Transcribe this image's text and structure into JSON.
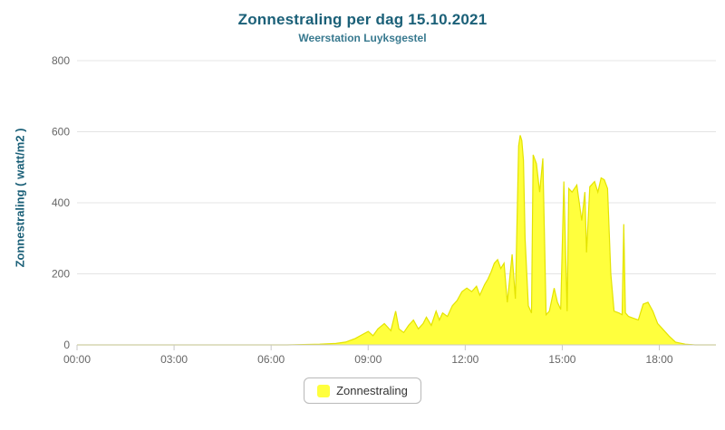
{
  "header": {
    "title": "Zonnestraling per dag 15.10.2021",
    "subtitle": "Weerstation Luyksgestel"
  },
  "legend": {
    "label": "Zonnestraling"
  },
  "colors": {
    "title_text": "#1b6078",
    "subtitle_text": "#38798f",
    "area_fill": "#ffff3d",
    "area_stroke": "#e3e300",
    "grid_line": "#e4e4e4",
    "axis_line": "#c8c8c8",
    "tick_text": "#666666"
  },
  "chart_data": {
    "type": "area",
    "title": "Zonnestraling per dag 15.10.2021",
    "subtitle": "Weerstation Luyksgestel",
    "ylabel": "Zonnestraling ( watt/m2 )",
    "xlabel": "",
    "ylim": [
      0,
      800
    ],
    "xlim_hours": [
      0,
      19.75
    ],
    "grid": "horizontal",
    "legend_position": "bottom",
    "y_ticks": [
      0,
      200,
      400,
      600,
      800
    ],
    "x_ticks": [
      {
        "hour": 0,
        "label": "00:00"
      },
      {
        "hour": 3,
        "label": "03:00"
      },
      {
        "hour": 6,
        "label": "06:00"
      },
      {
        "hour": 9,
        "label": "09:00"
      },
      {
        "hour": 12,
        "label": "12:00"
      },
      {
        "hour": 15,
        "label": "15:00"
      },
      {
        "hour": 18,
        "label": "18:00"
      }
    ],
    "series_name": "Zonnestraling",
    "x_hours": [
      0,
      0.5,
      1,
      1.5,
      2,
      2.5,
      3,
      3.5,
      4,
      4.5,
      5,
      5.5,
      6,
      6.5,
      7,
      7.5,
      8,
      8.3,
      8.6,
      8.8,
      9,
      9.15,
      9.3,
      9.5,
      9.7,
      9.85,
      9.95,
      10.1,
      10.25,
      10.4,
      10.55,
      10.7,
      10.8,
      10.95,
      11.1,
      11.2,
      11.3,
      11.45,
      11.6,
      11.75,
      11.9,
      12.05,
      12.2,
      12.35,
      12.45,
      12.6,
      12.7,
      12.8,
      12.9,
      13.0,
      13.1,
      13.2,
      13.3,
      13.45,
      13.55,
      13.65,
      13.7,
      13.75,
      13.8,
      13.85,
      13.95,
      14.05,
      14.1,
      14.2,
      14.3,
      14.4,
      14.5,
      14.6,
      14.75,
      14.85,
      14.95,
      15.05,
      15.15,
      15.2,
      15.3,
      15.45,
      15.6,
      15.7,
      15.75,
      15.85,
      16.0,
      16.1,
      16.2,
      16.3,
      16.4,
      16.5,
      16.6,
      16.75,
      16.85,
      16.9,
      16.95,
      17.05,
      17.2,
      17.35,
      17.5,
      17.65,
      17.8,
      17.95,
      18.1,
      18.3,
      18.5,
      18.8,
      19.1,
      19.75
    ],
    "values": [
      0,
      0,
      0,
      0,
      0,
      0,
      0,
      0,
      0,
      0,
      0,
      0,
      0,
      0,
      1,
      2,
      4,
      8,
      18,
      28,
      38,
      26,
      45,
      60,
      40,
      95,
      45,
      35,
      55,
      70,
      45,
      60,
      78,
      55,
      95,
      70,
      90,
      80,
      110,
      125,
      150,
      160,
      150,
      165,
      140,
      170,
      185,
      205,
      230,
      240,
      215,
      230,
      120,
      255,
      130,
      560,
      590,
      575,
      520,
      300,
      110,
      90,
      535,
      510,
      430,
      525,
      85,
      95,
      160,
      120,
      100,
      460,
      95,
      440,
      430,
      450,
      350,
      430,
      260,
      445,
      460,
      430,
      470,
      465,
      440,
      200,
      95,
      90,
      85,
      340,
      90,
      80,
      75,
      70,
      115,
      120,
      95,
      60,
      45,
      25,
      8,
      2,
      0,
      0
    ]
  }
}
